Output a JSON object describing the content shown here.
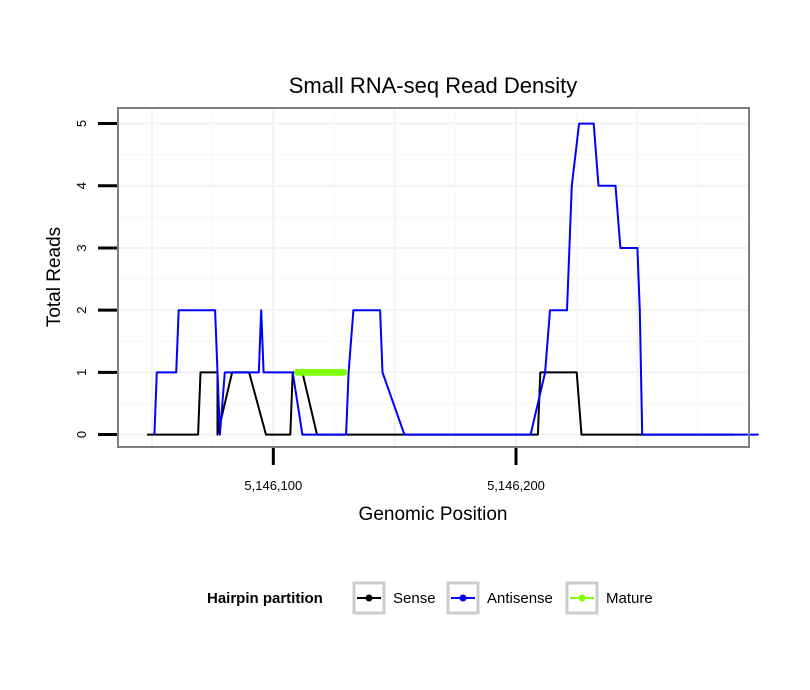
{
  "chart_data": {
    "type": "line",
    "title": "Small RNA-seq Read Density",
    "xlabel": "Genomic Position",
    "ylabel": "Total Reads",
    "xlim": [
      5146036,
      5146296
    ],
    "ylim": [
      -0.2,
      5.25
    ],
    "x_ticks": [
      {
        "value": 5146100,
        "label": "5,146,100"
      },
      {
        "value": 5146200,
        "label": "5,146,200"
      }
    ],
    "y_ticks": [
      {
        "value": 0,
        "label": "0"
      },
      {
        "value": 1,
        "label": "1"
      },
      {
        "value": 2,
        "label": "2"
      },
      {
        "value": 3,
        "label": "3"
      },
      {
        "value": 4,
        "label": "4"
      },
      {
        "value": 5,
        "label": "5"
      }
    ],
    "grid": true,
    "legend": {
      "title": "Hairpin partition",
      "position": "bottom",
      "entries": [
        "Sense",
        "Antisense",
        "Mature"
      ]
    },
    "series": [
      {
        "name": "Sense",
        "color": "#000000",
        "x": [
          5146048,
          5146069,
          5146070,
          5146073,
          5146077,
          5146077,
          5146083,
          5146090,
          5146097,
          5146107,
          5146108,
          5146112,
          5146118,
          5146128,
          5146142,
          5146175,
          5146201,
          5146209,
          5146210,
          5146225,
          5146227,
          5146237,
          5146250,
          5146265,
          5146270,
          5146290
        ],
        "y": [
          0,
          0,
          1,
          1,
          1,
          0,
          1,
          1,
          0,
          0,
          1,
          1,
          0,
          0,
          0,
          0,
          0,
          0,
          1,
          1,
          0,
          0,
          0,
          0,
          0,
          0
        ]
      },
      {
        "name": "Antisense",
        "color": "#0000ff",
        "x": [
          5146051,
          5146052,
          5146055,
          5146060,
          5146061,
          5146076,
          5146077,
          5146078,
          5146080,
          5146083,
          5146090,
          5146094,
          5146095,
          5146096,
          5146101,
          5146108,
          5146112,
          5146123,
          5146128,
          5146130,
          5146131,
          5146133,
          5146144,
          5146145,
          5146154,
          5146180,
          5146206,
          5146212,
          5146214,
          5146221,
          5146223,
          5146226,
          5146228,
          5146232,
          5146234,
          5146241,
          5146243,
          5146250,
          5146251,
          5146252,
          5146300
        ],
        "y": [
          0,
          1,
          1,
          1,
          2,
          2,
          1,
          0,
          1,
          1,
          1,
          1,
          2,
          1,
          1,
          1,
          0,
          0,
          0,
          0,
          1,
          2,
          2,
          1,
          0,
          0,
          0,
          1,
          2,
          2,
          4,
          5,
          5,
          5,
          4,
          4,
          3,
          3,
          2,
          0,
          0
        ]
      },
      {
        "name": "Mature",
        "color": "#7fff00",
        "x": [
          5146110,
          5146111,
          5146112,
          5146113,
          5146114,
          5146115,
          5146116,
          5146117,
          5146118,
          5146119,
          5146120,
          5146121,
          5146122,
          5146123,
          5146124,
          5146125,
          5146126,
          5146127,
          5146128,
          5146129
        ],
        "y": [
          1,
          1,
          1,
          1,
          1,
          1,
          1,
          1,
          1,
          1,
          1,
          1,
          1,
          1,
          1,
          1,
          1,
          1,
          1,
          1
        ]
      }
    ]
  }
}
